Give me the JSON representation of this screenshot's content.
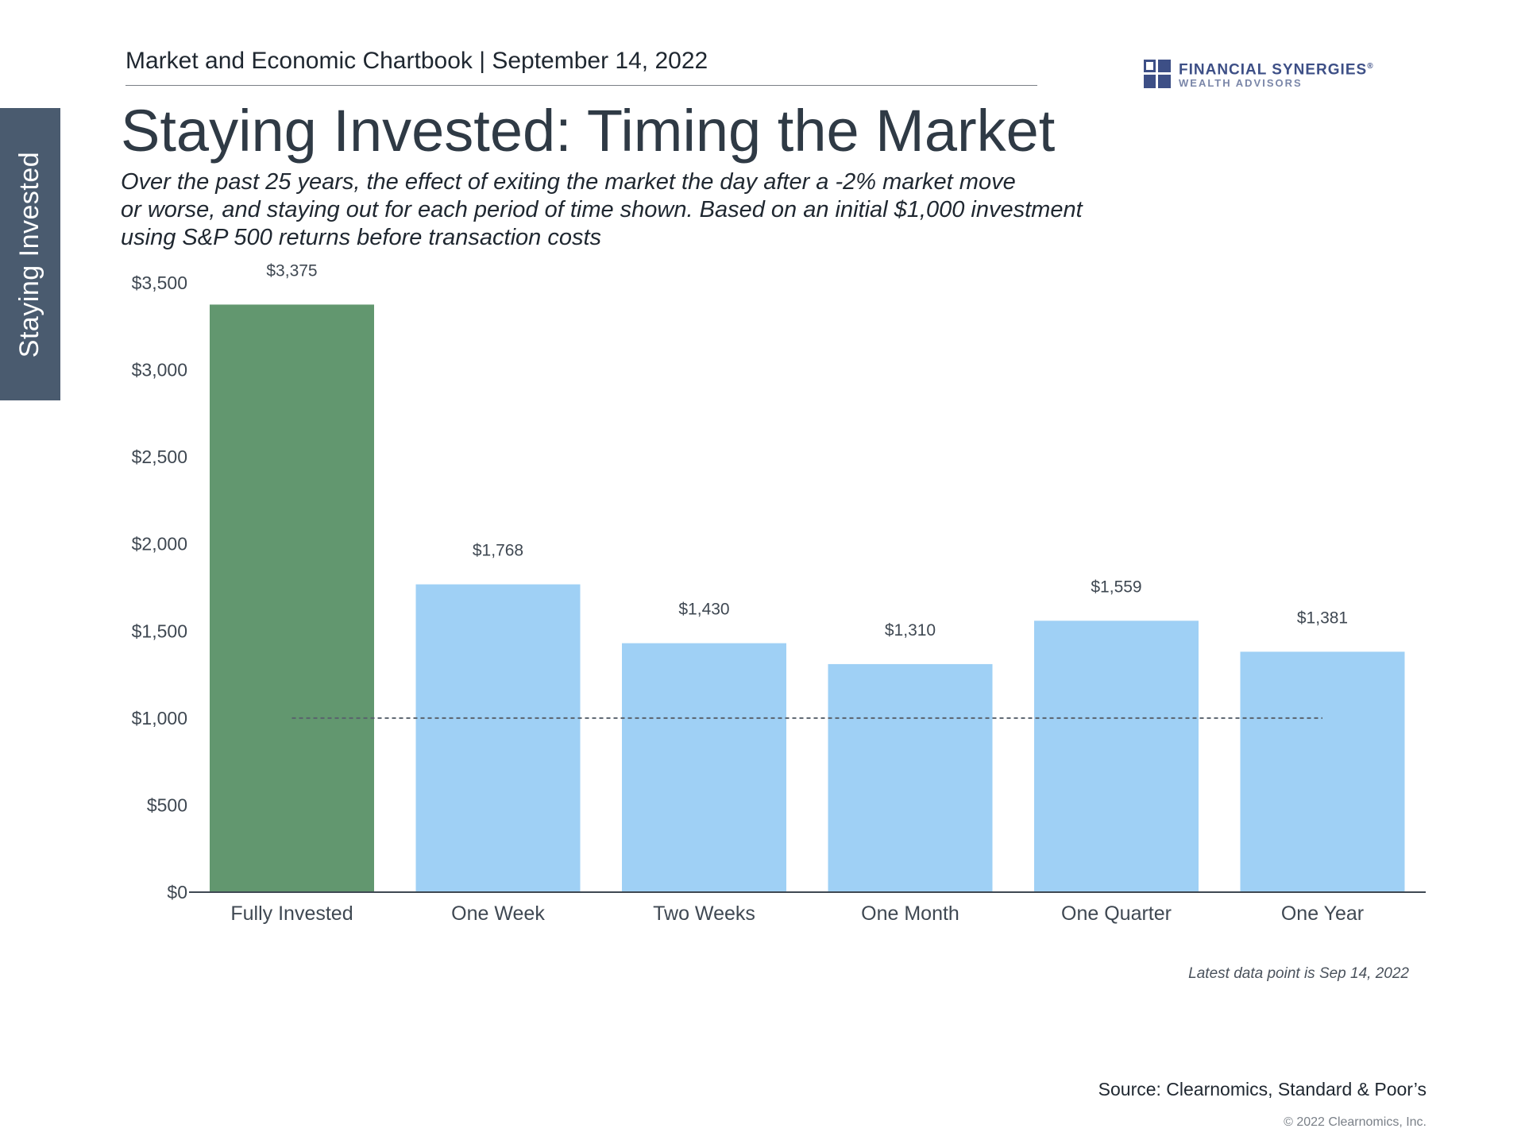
{
  "side_tab": {
    "label": "Staying Invested"
  },
  "header": {
    "line": "Market and Economic Chartbook | September 14, 2022"
  },
  "logo": {
    "name": "FINANCIAL SYNERGIES",
    "tagline": "WEALTH ADVISORS",
    "registered": "®",
    "color": "#3d4f86"
  },
  "title": "Staying Invested: Timing the Market",
  "subtitle": [
    "Over the past 25 years, the effect of exiting the market the day after a -2% market move",
    "or worse, and staying out for each period of time shown. Based on an initial $1,000 investment",
    "using S&P 500 returns before transaction costs"
  ],
  "chart_data": {
    "type": "bar",
    "categories": [
      "Fully Invested",
      "One Week",
      "Two Weeks",
      "One Month",
      "One Quarter",
      "One Year"
    ],
    "values": [
      3375,
      1768,
      1430,
      1310,
      1559,
      1381
    ],
    "value_labels": [
      "$3,375",
      "$1,768",
      "$1,430",
      "$1,310",
      "$1,559",
      "$1,381"
    ],
    "y_ticks": [
      "$0",
      "$500",
      "$1,000",
      "$1,500",
      "$2,000",
      "$2,500",
      "$3,000",
      "$3,500"
    ],
    "ylim": [
      0,
      3500
    ],
    "reference_line": 1000,
    "colors": [
      "#62976f",
      "#9fd0f5",
      "#9fd0f5",
      "#9fd0f5",
      "#9fd0f5",
      "#9fd0f5"
    ],
    "grid": false,
    "title": "",
    "xlabel": "",
    "ylabel": ""
  },
  "note": "Latest data point is Sep 14, 2022",
  "source": "Source: Clearnomics, Standard & Poor’s",
  "copyright": "© 2022 Clearnomics, Inc."
}
